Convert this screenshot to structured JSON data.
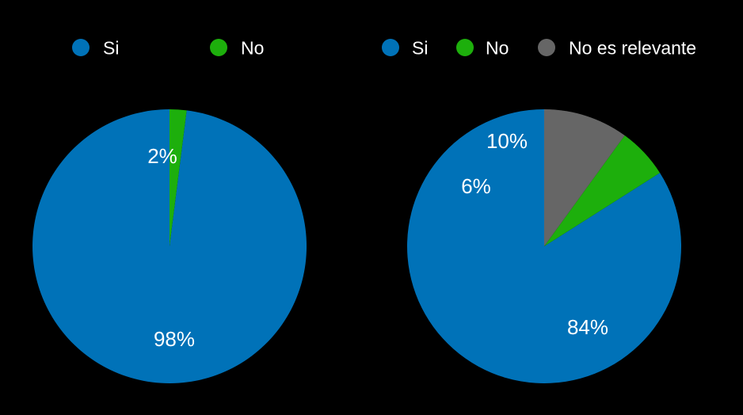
{
  "chart_data": [
    {
      "type": "pie",
      "title": "",
      "legend_position": "top",
      "categories": [
        "Si",
        "No"
      ],
      "values": [
        98,
        2
      ],
      "labels": [
        "98%",
        "2%"
      ],
      "colors": [
        "#0072B8",
        "#1DAF0C"
      ],
      "label_color": "#FFFFFF",
      "start": "12 o'clock",
      "direction": "counterclockwise"
    },
    {
      "type": "pie",
      "title": "",
      "legend_position": "top",
      "categories": [
        "Si",
        "No",
        "No es relevante"
      ],
      "values": [
        84,
        6,
        10
      ],
      "labels": [
        "84%",
        "6%",
        "10%"
      ],
      "colors": [
        "#0072B8",
        "#1DAF0C",
        "#666666"
      ],
      "label_color": "#FFFFFF",
      "start": "12 o'clock",
      "direction": "counterclockwise"
    }
  ],
  "colors": {
    "background": "#000000",
    "legend_text": "#FFFFFF"
  }
}
